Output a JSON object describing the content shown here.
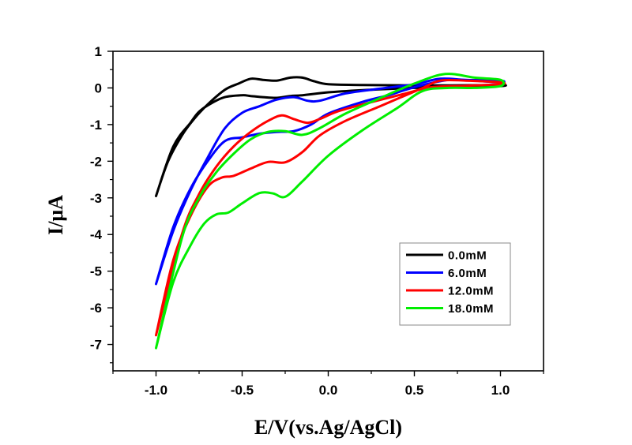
{
  "chart_data": {
    "type": "line",
    "title": "",
    "xlabel": "E/V(vs.Ag/AgCl)",
    "ylabel": "I/μA",
    "xlim": [
      -1.25,
      1.25
    ],
    "ylim": [
      -7.72,
      1.0
    ],
    "x_ticks": [
      -1.0,
      -0.5,
      0.0,
      0.5,
      1.0
    ],
    "x_tick_labels": [
      "-1.0",
      "-0.5",
      "0.0",
      "0.5",
      "1.0"
    ],
    "x_minor_ticks": [
      -1.25,
      -0.75,
      -0.25,
      0.25,
      0.75,
      1.25
    ],
    "y_ticks": [
      1,
      0,
      -1,
      -2,
      -3,
      -4,
      -5,
      -6,
      -7
    ],
    "y_tick_labels": [
      "1",
      "0",
      "-1",
      "-2",
      "-3",
      "-4",
      "-5",
      "-6",
      "-7"
    ],
    "y_minor_ticks": [
      0.5,
      -0.5,
      -1.5,
      -2.5,
      -3.5,
      -4.5,
      -5.5,
      -6.5,
      -7.5
    ],
    "grid": false,
    "legend_position": "lower-right",
    "series": [
      {
        "name": "0.0mM",
        "color": "#000000",
        "points": [
          [
            -1.0,
            -2.95
          ],
          [
            -0.9,
            -1.6
          ],
          [
            -0.8,
            -0.95
          ],
          [
            -0.75,
            -0.65
          ],
          [
            -0.68,
            -0.42
          ],
          [
            -0.6,
            -0.25
          ],
          [
            -0.5,
            -0.2
          ],
          [
            -0.45,
            -0.22
          ],
          [
            -0.38,
            -0.25
          ],
          [
            -0.3,
            -0.27
          ],
          [
            -0.22,
            -0.22
          ],
          [
            -0.15,
            -0.2
          ],
          [
            0.0,
            -0.12
          ],
          [
            0.2,
            -0.06
          ],
          [
            0.5,
            0.0
          ],
          [
            0.8,
            0.02
          ],
          [
            1.0,
            0.05
          ],
          [
            1.0,
            0.08
          ],
          [
            0.7,
            0.07
          ],
          [
            0.5,
            0.07
          ],
          [
            0.2,
            0.08
          ],
          [
            0.0,
            0.1
          ],
          [
            -0.08,
            0.18
          ],
          [
            -0.15,
            0.28
          ],
          [
            -0.22,
            0.28
          ],
          [
            -0.3,
            0.2
          ],
          [
            -0.38,
            0.22
          ],
          [
            -0.45,
            0.25
          ],
          [
            -0.52,
            0.12
          ],
          [
            -0.6,
            -0.05
          ],
          [
            -0.7,
            -0.45
          ],
          [
            -0.78,
            -0.85
          ],
          [
            -0.85,
            -1.3
          ],
          [
            -0.93,
            -2.0
          ],
          [
            -1.0,
            -2.95
          ]
        ]
      },
      {
        "name": "6.0mM",
        "color": "#0000ff",
        "points": [
          [
            -1.0,
            -5.35
          ],
          [
            -0.9,
            -3.8
          ],
          [
            -0.8,
            -2.75
          ],
          [
            -0.7,
            -2.0
          ],
          [
            -0.6,
            -1.45
          ],
          [
            -0.5,
            -1.35
          ],
          [
            -0.4,
            -1.25
          ],
          [
            -0.3,
            -1.2
          ],
          [
            -0.2,
            -1.18
          ],
          [
            -0.1,
            -1.0
          ],
          [
            0.0,
            -0.7
          ],
          [
            0.2,
            -0.38
          ],
          [
            0.35,
            -0.2
          ],
          [
            0.45,
            -0.05
          ],
          [
            0.55,
            0.08
          ],
          [
            0.7,
            0.22
          ],
          [
            0.85,
            0.2
          ],
          [
            1.0,
            0.15
          ],
          [
            1.0,
            0.2
          ],
          [
            0.8,
            0.22
          ],
          [
            0.65,
            0.25
          ],
          [
            0.5,
            0.1
          ],
          [
            0.3,
            -0.02
          ],
          [
            0.1,
            -0.15
          ],
          [
            -0.05,
            -0.35
          ],
          [
            -0.12,
            -0.35
          ],
          [
            -0.2,
            -0.25
          ],
          [
            -0.3,
            -0.32
          ],
          [
            -0.4,
            -0.5
          ],
          [
            -0.5,
            -0.68
          ],
          [
            -0.6,
            -1.1
          ],
          [
            -0.7,
            -1.9
          ],
          [
            -0.8,
            -2.8
          ],
          [
            -0.9,
            -3.9
          ],
          [
            -1.0,
            -5.35
          ]
        ]
      },
      {
        "name": "12.0mM",
        "color": "#ff0000",
        "points": [
          [
            -1.0,
            -6.75
          ],
          [
            -0.9,
            -4.7
          ],
          [
            -0.8,
            -3.5
          ],
          [
            -0.7,
            -2.7
          ],
          [
            -0.62,
            -2.45
          ],
          [
            -0.55,
            -2.4
          ],
          [
            -0.45,
            -2.2
          ],
          [
            -0.35,
            -2.02
          ],
          [
            -0.25,
            -2.03
          ],
          [
            -0.15,
            -1.75
          ],
          [
            -0.05,
            -1.3
          ],
          [
            0.1,
            -0.9
          ],
          [
            0.3,
            -0.5
          ],
          [
            0.45,
            -0.2
          ],
          [
            0.55,
            0.0
          ],
          [
            0.65,
            0.2
          ],
          [
            0.8,
            0.2
          ],
          [
            1.0,
            0.15
          ],
          [
            1.0,
            0.1
          ],
          [
            0.8,
            0.06
          ],
          [
            0.6,
            0.02
          ],
          [
            0.45,
            -0.15
          ],
          [
            0.2,
            -0.45
          ],
          [
            0.05,
            -0.65
          ],
          [
            -0.05,
            -0.85
          ],
          [
            -0.12,
            -0.95
          ],
          [
            -0.2,
            -0.85
          ],
          [
            -0.27,
            -0.75
          ],
          [
            -0.35,
            -0.9
          ],
          [
            -0.45,
            -1.2
          ],
          [
            -0.55,
            -1.6
          ],
          [
            -0.65,
            -2.15
          ],
          [
            -0.75,
            -2.9
          ],
          [
            -0.85,
            -4.0
          ],
          [
            -1.0,
            -6.75
          ]
        ]
      },
      {
        "name": "18.0mM",
        "color": "#00ee00",
        "points": [
          [
            -1.0,
            -7.1
          ],
          [
            -0.9,
            -5.3
          ],
          [
            -0.8,
            -4.3
          ],
          [
            -0.72,
            -3.7
          ],
          [
            -0.65,
            -3.45
          ],
          [
            -0.58,
            -3.4
          ],
          [
            -0.5,
            -3.15
          ],
          [
            -0.4,
            -2.87
          ],
          [
            -0.32,
            -2.88
          ],
          [
            -0.25,
            -2.97
          ],
          [
            -0.15,
            -2.55
          ],
          [
            0.0,
            -1.85
          ],
          [
            0.2,
            -1.15
          ],
          [
            0.4,
            -0.55
          ],
          [
            0.55,
            -0.08
          ],
          [
            0.7,
            0.0
          ],
          [
            0.85,
            0.0
          ],
          [
            1.0,
            0.05
          ],
          [
            1.0,
            0.22
          ],
          [
            0.85,
            0.28
          ],
          [
            0.68,
            0.38
          ],
          [
            0.5,
            0.12
          ],
          [
            0.3,
            -0.28
          ],
          [
            0.1,
            -0.7
          ],
          [
            -0.05,
            -1.1
          ],
          [
            -0.15,
            -1.28
          ],
          [
            -0.25,
            -1.18
          ],
          [
            -0.35,
            -1.2
          ],
          [
            -0.45,
            -1.4
          ],
          [
            -0.55,
            -1.8
          ],
          [
            -0.65,
            -2.3
          ],
          [
            -0.75,
            -3.0
          ],
          [
            -0.85,
            -4.1
          ],
          [
            -1.0,
            -7.1
          ]
        ]
      }
    ]
  }
}
